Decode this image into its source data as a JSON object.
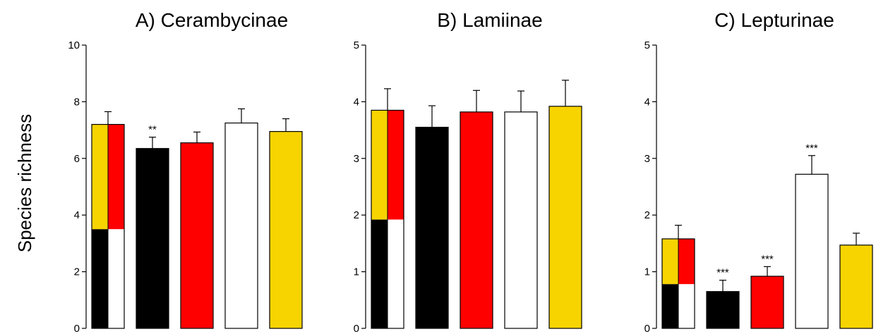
{
  "ylabel": "Species richness",
  "colors": {
    "black": "#000000",
    "red": "#ff0000",
    "white": "#ffffff",
    "yellow": "#f7d400",
    "outline": "#000000"
  },
  "chart_data": [
    {
      "type": "bar",
      "title": "A) Cerambycinae",
      "ylim": [
        0,
        10
      ],
      "yticks": [
        0,
        2,
        4,
        6,
        8,
        10
      ],
      "ylabel": "Species richness",
      "bars": [
        {
          "kind": "composite",
          "top_value": 7.2,
          "split_value": 3.5,
          "error": 0.45,
          "annotation": "",
          "quadrants": {
            "upper_left": "yellow",
            "upper_right": "red",
            "lower_left": "black",
            "lower_right": "white"
          }
        },
        {
          "kind": "single",
          "color": "black",
          "value": 6.35,
          "error": 0.4,
          "annotation": "**"
        },
        {
          "kind": "single",
          "color": "red",
          "value": 6.55,
          "error": 0.38,
          "annotation": ""
        },
        {
          "kind": "single",
          "color": "white",
          "value": 7.25,
          "error": 0.5,
          "annotation": ""
        },
        {
          "kind": "single",
          "color": "yellow",
          "value": 6.95,
          "error": 0.45,
          "annotation": ""
        }
      ]
    },
    {
      "type": "bar",
      "title": "B) Lamiinae",
      "ylim": [
        0,
        5
      ],
      "yticks": [
        0,
        1,
        2,
        3,
        4,
        5
      ],
      "bars": [
        {
          "kind": "composite",
          "top_value": 3.85,
          "split_value": 1.92,
          "error": 0.38,
          "annotation": "",
          "quadrants": {
            "upper_left": "yellow",
            "upper_right": "red",
            "lower_left": "black",
            "lower_right": "white"
          }
        },
        {
          "kind": "single",
          "color": "black",
          "value": 3.55,
          "error": 0.38,
          "annotation": ""
        },
        {
          "kind": "single",
          "color": "red",
          "value": 3.82,
          "error": 0.38,
          "annotation": ""
        },
        {
          "kind": "single",
          "color": "white",
          "value": 3.82,
          "error": 0.37,
          "annotation": ""
        },
        {
          "kind": "single",
          "color": "yellow",
          "value": 3.92,
          "error": 0.46,
          "annotation": ""
        }
      ]
    },
    {
      "type": "bar",
      "title": "C) Lepturinae",
      "ylim": [
        0,
        5
      ],
      "yticks": [
        0,
        1,
        2,
        3,
        4,
        5
      ],
      "bars": [
        {
          "kind": "composite",
          "top_value": 1.58,
          "split_value": 0.78,
          "error": 0.24,
          "annotation": "",
          "quadrants": {
            "upper_left": "yellow",
            "upper_right": "red",
            "lower_left": "black",
            "lower_right": "white"
          }
        },
        {
          "kind": "single",
          "color": "black",
          "value": 0.65,
          "error": 0.2,
          "annotation": "***"
        },
        {
          "kind": "single",
          "color": "red",
          "value": 0.92,
          "error": 0.17,
          "annotation": "***"
        },
        {
          "kind": "single",
          "color": "white",
          "value": 2.72,
          "error": 0.33,
          "annotation": "***"
        },
        {
          "kind": "single",
          "color": "yellow",
          "value": 1.47,
          "error": 0.21,
          "annotation": ""
        }
      ]
    }
  ]
}
